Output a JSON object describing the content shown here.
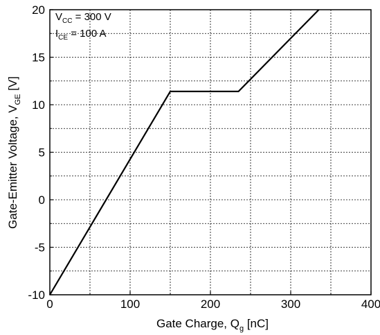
{
  "chart_data": {
    "type": "line",
    "xlabel": "Gate Charge, Q",
    "xlabel_subscript": "g",
    "xlabel_suffix": " [nC]",
    "ylabel": "Gate-Emitter Voltage, V",
    "ylabel_subscript": "GE",
    "ylabel_suffix": " [V]",
    "xlim": [
      0,
      400
    ],
    "ylim": [
      -10,
      20
    ],
    "x_ticks": [
      0,
      100,
      200,
      300,
      400
    ],
    "x_tick_labels": [
      "0",
      "100",
      "200",
      "300",
      "400"
    ],
    "x_minor_grid": [
      50,
      150,
      250,
      350
    ],
    "y_ticks": [
      -10,
      -5,
      0,
      5,
      10,
      15,
      20
    ],
    "y_tick_labels": [
      "-10",
      "-5",
      "0",
      "5",
      "10",
      "15",
      "20"
    ],
    "y_minor_grid": [
      -7.5,
      -2.5,
      2.5,
      7.5,
      12.5,
      17.5
    ],
    "grid": true,
    "grid_style": "dashed",
    "line_color": "#000000",
    "series": [
      {
        "x": [
          0,
          150,
          235,
          335
        ],
        "y": [
          -10,
          11.4,
          11.4,
          20
        ]
      }
    ],
    "annotations": [
      {
        "main": "V",
        "sub": "CC",
        "rest": " = 300 V"
      },
      {
        "main": "I",
        "sub": "CE",
        "rest": " = 100 A"
      }
    ]
  }
}
